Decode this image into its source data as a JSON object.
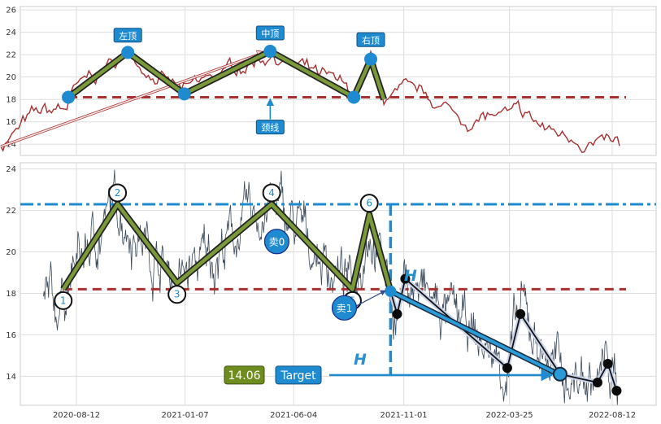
{
  "chart_data": [
    {
      "type": "line",
      "title": "",
      "xlabel": "",
      "ylabel": "",
      "ylim": [
        13,
        26.3
      ],
      "yticks": [
        14,
        16,
        18,
        20,
        22,
        24,
        26
      ],
      "grid": true,
      "series_color": "#a83232",
      "neckline": {
        "y": 18.2,
        "color": "#a83232"
      },
      "pattern_points": [
        {
          "x": "2020-08-01",
          "y": 18.2
        },
        {
          "x": "2020-10-21",
          "y": 22.2
        },
        {
          "x": "2021-01-06",
          "y": 18.5
        },
        {
          "x": "2021-05-03",
          "y": 22.3
        },
        {
          "x": "2021-08-25",
          "y": 18.2
        },
        {
          "x": "2021-09-17",
          "y": 21.6
        },
        {
          "x": "2021-10-05",
          "y": 18.0
        }
      ],
      "annotations": [
        {
          "text": "左顶",
          "x": "2020-10-21",
          "y": 23.7
        },
        {
          "text": "中顶",
          "x": "2021-05-03",
          "y": 23.9
        },
        {
          "text": "右顶",
          "x": "2021-09-17",
          "y": 23.3
        },
        {
          "text": "颈线",
          "x": "2021-05-03",
          "y": 15.5
        }
      ],
      "arrow_from": {
        "x": "2020-05-01",
        "y": 13.8
      },
      "arrow_to": {
        "x": "2021-05-03",
        "y": 22.3
      }
    },
    {
      "type": "line",
      "title": "",
      "xlabel": "",
      "ylabel": "",
      "ylim": [
        12.6,
        24.3
      ],
      "yticks": [
        14,
        16,
        18,
        20,
        22,
        24
      ],
      "xtick_labels": [
        "2020-08-12",
        "2021-01-07",
        "2021-06-04",
        "2021-11-01",
        "2022-03-25",
        "2022-08-12"
      ],
      "grid": true,
      "series_color": "#3a4a5c",
      "neckline": {
        "y": 18.2,
        "color": "#a83232"
      },
      "top_line": {
        "y": 22.3,
        "color": "#1e8bd0"
      },
      "pattern_points": [
        {
          "x": "2020-07-25",
          "y": 18.2,
          "label": "1"
        },
        {
          "x": "2020-10-07",
          "y": 22.3,
          "label": "2"
        },
        {
          "x": "2020-12-27",
          "y": 18.5,
          "label": "3"
        },
        {
          "x": "2021-05-05",
          "y": 22.3,
          "label": "4"
        },
        {
          "x": "2021-08-23",
          "y": 18.2,
          "label": "5"
        },
        {
          "x": "2021-09-15",
          "y": 21.8,
          "label": "6"
        },
        {
          "x": "2021-10-14",
          "y": 18.1,
          "label": ""
        }
      ],
      "sell_signals": [
        {
          "label": "卖0",
          "x": "2021-05-12",
          "y": 20.5
        },
        {
          "label": "卖1",
          "x": "2021-08-12",
          "y": 17.3
        }
      ],
      "projection_points": [
        {
          "x": "2021-10-14",
          "y": 18.1
        },
        {
          "x": "2021-10-23",
          "y": 17.0
        },
        {
          "x": "2021-11-03",
          "y": 18.7
        },
        {
          "x": "2022-03-22",
          "y": 14.4
        },
        {
          "x": "2022-04-09",
          "y": 17.0
        },
        {
          "x": "2022-06-02",
          "y": 14.1
        },
        {
          "x": "2022-07-23",
          "y": 13.7
        },
        {
          "x": "2022-08-06",
          "y": 14.6
        },
        {
          "x": "2022-08-18",
          "y": 13.3
        }
      ],
      "target": {
        "label": "Target",
        "value": "14.06",
        "y": 14.06,
        "x": "2022-06-02"
      },
      "height_labels": [
        "H",
        "H"
      ],
      "vertical_marker": {
        "x": "2021-10-14"
      }
    }
  ]
}
